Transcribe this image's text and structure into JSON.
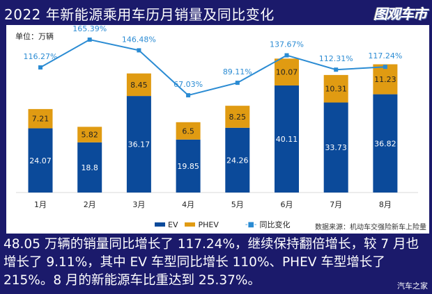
{
  "header": {
    "title": "2022 年新能源乘用车历月销量及同比变化"
  },
  "branding": {
    "logo_text": "图观车市",
    "watermark": "汽车之家"
  },
  "chart_data": {
    "type": "bar",
    "stacked": true,
    "unit_label": "单位：万辆",
    "categories": [
      "1月",
      "2月",
      "3月",
      "4月",
      "5月",
      "6月",
      "7月",
      "8月"
    ],
    "series": [
      {
        "name": "EV",
        "color": "#0b4a9a",
        "values": [
          24.07,
          18.8,
          36.17,
          19.85,
          24.26,
          40.11,
          33.73,
          36.82
        ],
        "labels": [
          "24.07",
          "18.8",
          "36.17",
          "19.85",
          "24.26",
          "40.11",
          "33.73",
          "36.82"
        ]
      },
      {
        "name": "PHEV",
        "color": "#e09b12",
        "values": [
          7.21,
          5.82,
          8.45,
          6.5,
          8.25,
          10.07,
          10.31,
          11.23
        ],
        "labels": [
          "7.21",
          "5.82",
          "8.45",
          "6.5",
          "8.25",
          "10.07",
          "10.31",
          "11.23"
        ]
      },
      {
        "name": "同比变化",
        "type": "line",
        "color": "#2a8bd3",
        "values": [
          116.27,
          165.39,
          146.48,
          67.03,
          89.11,
          137.67,
          112.31,
          117.24
        ],
        "labels": [
          "116.27%",
          "165.39%",
          "146.48%",
          "67.03%",
          "89.11%",
          "137.67%",
          "112.31%",
          "117.24%"
        ]
      }
    ],
    "legend_position": "bottom",
    "grid": false,
    "source": "数据来源：机动车交强险新车上险量"
  },
  "caption": "48.05 万辆的销量同比增长了 117.24%，继续保持翻倍增长，较 7 月也增长了 9.11%，其中 EV 车型同比增长 110%、PHEV 车型增长了 215%。8 月的新能源车比重达到 25.37%。"
}
